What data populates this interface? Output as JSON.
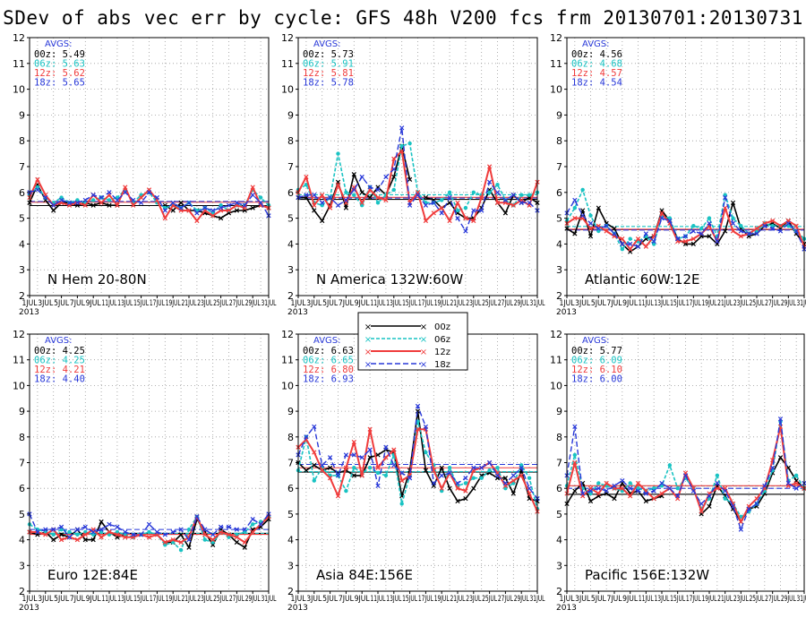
{
  "title": "SDev of abs vec err by cycle: GFS 48h V200 fcs frm 20130701:20130731",
  "colors": {
    "00z": "#000000",
    "06z": "#19c3c3",
    "12z": "#f03c3c",
    "18z": "#2838d8"
  },
  "legend": [
    {
      "name": "00z",
      "symbol": "×"
    },
    {
      "name": "06z",
      "symbol": "×"
    },
    {
      "name": "12z",
      "symbol": "×"
    },
    {
      "name": "18z",
      "symbol": "×"
    }
  ],
  "x_tick_labels": [
    "1JUL",
    "3JUL",
    "5JUL",
    "7JUL",
    "9JUL",
    "11JUL",
    "13JUL",
    "15JUL",
    "17JUL",
    "19JUL",
    "21JUL",
    "23JUL",
    "25JUL",
    "27JUL",
    "29JUL",
    "31JUL"
  ],
  "x_year_label": "2013",
  "chart_data": [
    {
      "type": "line",
      "region": "N Hem 20-80N",
      "avgs_label": "AVGS:",
      "ylim": [
        2,
        12
      ],
      "x": [
        1,
        2,
        3,
        4,
        5,
        6,
        7,
        8,
        9,
        10,
        11,
        12,
        13,
        14,
        15,
        16,
        17,
        18,
        19,
        20,
        21,
        22,
        23,
        24,
        25,
        26,
        27,
        28,
        29,
        30,
        31
      ],
      "series": [
        {
          "name": "00z",
          "avg": 5.49,
          "values": [
            5.6,
            6.3,
            5.7,
            5.3,
            5.6,
            5.6,
            5.5,
            5.6,
            5.5,
            5.6,
            5.5,
            5.5,
            null,
            null,
            null,
            null,
            null,
            5.5,
            5.3,
            5.6,
            5.3,
            5.3,
            5.2,
            5.1,
            5.0,
            5.2,
            5.3,
            5.3,
            5.4,
            5.5,
            5.4
          ]
        },
        {
          "name": "06z",
          "avg": 5.63,
          "values": [
            5.9,
            6.2,
            5.8,
            5.6,
            5.8,
            5.6,
            5.7,
            5.6,
            5.7,
            5.8,
            5.7,
            5.8,
            6.1,
            5.6,
            5.9,
            6.0,
            5.6,
            5.4,
            5.5,
            5.4,
            5.6,
            5.3,
            5.4,
            5.2,
            5.5,
            5.3,
            5.5,
            5.5,
            6.1,
            5.8,
            5.5
          ]
        },
        {
          "name": "12z",
          "avg": 5.62,
          "values": [
            5.8,
            6.5,
            5.9,
            5.5,
            5.6,
            5.5,
            5.6,
            5.5,
            5.9,
            5.6,
            5.9,
            5.5,
            6.2,
            5.5,
            5.8,
            6.1,
            5.7,
            5.0,
            5.5,
            5.3,
            5.3,
            4.9,
            5.3,
            5.1,
            5.3,
            5.3,
            5.5,
            5.4,
            6.2,
            5.5,
            5.4
          ]
        },
        {
          "name": "18z",
          "avg": 5.65,
          "values": [
            6.0,
            6.1,
            5.8,
            5.5,
            5.7,
            5.6,
            5.6,
            5.7,
            5.9,
            5.8,
            6.0,
            5.7,
            6.0,
            5.7,
            5.6,
            6.0,
            5.8,
            5.3,
            5.6,
            5.4,
            5.6,
            5.2,
            5.4,
            5.3,
            5.4,
            5.5,
            5.6,
            5.5,
            5.9,
            5.6,
            5.1
          ]
        }
      ]
    },
    {
      "type": "line",
      "region": "N America 132W:60W",
      "avgs_label": "AVGS:",
      "ylim": [
        2,
        12
      ],
      "x": [
        1,
        2,
        3,
        4,
        5,
        6,
        7,
        8,
        9,
        10,
        11,
        12,
        13,
        14,
        15,
        16,
        17,
        18,
        19,
        20,
        21,
        22,
        23,
        24,
        25,
        26,
        27,
        28,
        29,
        30,
        31
      ],
      "series": [
        {
          "name": "00z",
          "avg": 5.73,
          "values": [
            5.8,
            5.8,
            5.3,
            4.9,
            5.5,
            6.4,
            5.4,
            6.7,
            6.0,
            5.8,
            6.2,
            5.9,
            6.6,
            7.8,
            6.5,
            null,
            5.8,
            5.7,
            5.4,
            5.6,
            5.2,
            5.0,
            5.0,
            5.4,
            6.1,
            5.6,
            5.2,
            5.9,
            5.6,
            5.8,
            5.6
          ]
        },
        {
          "name": "06z",
          "avg": 5.91,
          "values": [
            6.1,
            6.3,
            5.6,
            5.5,
            5.8,
            7.5,
            6.0,
            5.9,
            5.5,
            6.2,
            5.6,
            5.9,
            6.1,
            7.8,
            7.9,
            6.0,
            5.6,
            5.6,
            5.7,
            6.0,
            5.3,
            5.4,
            6.0,
            5.9,
            6.0,
            6.3,
            5.7,
            5.5,
            5.9,
            5.9,
            6.0
          ]
        },
        {
          "name": "12z",
          "avg": 5.81,
          "values": [
            6.0,
            6.6,
            5.5,
            5.9,
            5.4,
            6.3,
            5.6,
            6.2,
            5.6,
            6.1,
            5.8,
            5.7,
            7.3,
            7.6,
            5.6,
            6.0,
            4.9,
            5.2,
            5.4,
            4.9,
            5.6,
            5.0,
            4.9,
            5.8,
            7.0,
            5.6,
            5.6,
            5.5,
            5.7,
            5.5,
            6.4
          ]
        },
        {
          "name": "18z",
          "avg": 5.78,
          "values": [
            5.8,
            5.9,
            5.9,
            5.6,
            5.8,
            5.5,
            5.7,
            6.1,
            6.6,
            6.2,
            6.1,
            6.6,
            6.9,
            8.5,
            5.5,
            5.9,
            5.5,
            5.6,
            5.2,
            5.8,
            5.0,
            4.5,
            5.3,
            5.3,
            6.4,
            6.0,
            5.7,
            5.9,
            5.6,
            5.6,
            5.3
          ]
        }
      ]
    },
    {
      "type": "line",
      "region": "Atlantic 60W:12E",
      "avgs_label": "AVGS:",
      "ylim": [
        2,
        12
      ],
      "x": [
        1,
        2,
        3,
        4,
        5,
        6,
        7,
        8,
        9,
        10,
        11,
        12,
        13,
        14,
        15,
        16,
        17,
        18,
        19,
        20,
        21,
        22,
        23,
        24,
        25,
        26,
        27,
        28,
        29,
        30,
        31
      ],
      "series": [
        {
          "name": "00z",
          "avg": 4.56,
          "values": [
            4.6,
            4.4,
            5.3,
            4.3,
            5.4,
            4.8,
            4.6,
            4.0,
            3.7,
            3.9,
            4.2,
            4.3,
            5.3,
            4.9,
            4.2,
            4.0,
            4.0,
            4.3,
            4.3,
            4.0,
            4.5,
            5.6,
            4.6,
            4.3,
            4.4,
            4.7,
            4.8,
            4.6,
            4.9,
            4.4,
            4.0
          ]
        },
        {
          "name": "06z",
          "avg": 4.68,
          "values": [
            4.9,
            5.4,
            6.1,
            5.1,
            4.5,
            4.7,
            4.4,
            3.8,
            4.2,
            4.1,
            4.3,
            4.0,
            5.1,
            5.0,
            4.2,
            4.3,
            4.7,
            4.6,
            5.0,
            4.3,
            5.9,
            5.0,
            4.7,
            4.4,
            4.5,
            4.8,
            4.7,
            4.7,
            4.7,
            4.5,
            4.2
          ]
        },
        {
          "name": "12z",
          "avg": 4.57,
          "values": [
            4.8,
            5.0,
            5.0,
            4.6,
            4.7,
            4.5,
            4.3,
            4.2,
            3.8,
            4.2,
            3.9,
            4.3,
            5.2,
            4.8,
            4.1,
            4.1,
            4.2,
            4.4,
            4.7,
            4.1,
            5.4,
            4.5,
            4.3,
            4.4,
            4.6,
            4.8,
            4.9,
            4.7,
            4.9,
            4.7,
            3.9
          ]
        },
        {
          "name": "18z",
          "avg": 4.54,
          "values": [
            5.2,
            5.7,
            5.1,
            4.8,
            4.6,
            4.7,
            4.4,
            4.0,
            4.0,
            3.9,
            4.4,
            4.1,
            5.0,
            4.9,
            4.2,
            4.3,
            4.5,
            4.4,
            4.8,
            4.1,
            5.8,
            4.8,
            4.5,
            4.4,
            4.4,
            4.7,
            4.6,
            4.5,
            4.8,
            4.5,
            3.8
          ]
        }
      ]
    },
    {
      "type": "line",
      "region": "Euro 12E:84E",
      "avgs_label": "AVGS:",
      "ylim": [
        2,
        12
      ],
      "x": [
        1,
        2,
        3,
        4,
        5,
        6,
        7,
        8,
        9,
        10,
        11,
        12,
        13,
        14,
        15,
        16,
        17,
        18,
        19,
        20,
        21,
        22,
        23,
        24,
        25,
        26,
        27,
        28,
        29,
        30,
        31
      ],
      "series": [
        {
          "name": "00z",
          "avg": 4.25,
          "values": [
            4.3,
            4.2,
            4.3,
            4.0,
            4.2,
            4.1,
            4.4,
            4.0,
            4.0,
            4.7,
            4.3,
            4.1,
            4.2,
            null,
            null,
            null,
            null,
            3.9,
            3.9,
            4.2,
            3.7,
            4.8,
            4.3,
            3.8,
            4.4,
            4.2,
            3.9,
            3.7,
            4.4,
            4.5,
            4.8
          ]
        },
        {
          "name": "06z",
          "avg": 4.25,
          "values": [
            4.6,
            4.4,
            4.3,
            4.2,
            4.4,
            4.3,
            4.2,
            4.3,
            4.2,
            4.3,
            4.2,
            4.3,
            4.2,
            4.1,
            4.2,
            4.3,
            4.2,
            3.8,
            3.9,
            3.6,
            4.4,
            4.9,
            4.0,
            3.9,
            4.3,
            4.1,
            4.2,
            4.3,
            4.6,
            4.7,
            4.9
          ]
        },
        {
          "name": "12z",
          "avg": 4.21,
          "values": [
            4.3,
            4.3,
            4.2,
            4.4,
            4.0,
            4.1,
            4.0,
            4.2,
            4.4,
            4.1,
            4.3,
            4.2,
            4.1,
            4.1,
            4.2,
            4.1,
            4.2,
            3.9,
            4.0,
            3.9,
            4.1,
            4.9,
            4.2,
            4.0,
            4.3,
            4.2,
            4.1,
            3.9,
            4.3,
            4.6,
            4.9
          ]
        },
        {
          "name": "18z",
          "avg": 4.4,
          "values": [
            5.0,
            4.3,
            4.4,
            4.4,
            4.5,
            4.1,
            4.4,
            4.5,
            4.3,
            4.4,
            4.6,
            4.5,
            4.3,
            4.2,
            4.2,
            4.6,
            4.3,
            4.2,
            4.3,
            4.4,
            4.0,
            4.9,
            4.4,
            4.2,
            4.5,
            4.5,
            4.4,
            4.4,
            4.8,
            4.6,
            5.0
          ]
        }
      ]
    },
    {
      "type": "line",
      "region": "Asia 84E:156E",
      "avgs_label": "AVGS:",
      "ylim": [
        2,
        12
      ],
      "x": [
        1,
        2,
        3,
        4,
        5,
        6,
        7,
        8,
        9,
        10,
        11,
        12,
        13,
        14,
        15,
        16,
        17,
        18,
        19,
        20,
        21,
        22,
        23,
        24,
        25,
        26,
        27,
        28,
        29,
        30,
        31
      ],
      "series": [
        {
          "name": "00z",
          "avg": 6.63,
          "values": [
            7.0,
            6.7,
            6.9,
            6.7,
            6.8,
            6.6,
            6.7,
            6.5,
            6.5,
            7.2,
            7.3,
            7.5,
            7.4,
            5.7,
            6.7,
            9.0,
            6.7,
            6.1,
            6.8,
            6.0,
            5.5,
            5.6,
            6.0,
            6.5,
            6.6,
            6.4,
            6.4,
            5.8,
            6.7,
            5.6,
            5.5
          ]
        },
        {
          "name": "06z",
          "avg": 6.65,
          "values": [
            6.7,
            8.0,
            6.3,
            6.8,
            6.5,
            6.5,
            5.9,
            6.8,
            6.6,
            6.8,
            6.6,
            6.5,
            7.3,
            5.4,
            6.5,
            8.6,
            7.4,
            6.9,
            5.9,
            6.8,
            6.1,
            6.2,
            6.4,
            6.4,
            6.7,
            6.8,
            6.0,
            6.2,
            6.9,
            6.4,
            5.2
          ]
        },
        {
          "name": "12z",
          "avg": 6.8,
          "values": [
            7.6,
            7.9,
            7.4,
            6.7,
            6.4,
            5.7,
            6.8,
            7.8,
            6.5,
            8.3,
            6.8,
            7.2,
            7.5,
            6.3,
            6.5,
            8.3,
            8.3,
            6.7,
            6.0,
            6.6,
            6.0,
            5.9,
            6.7,
            6.8,
            7.0,
            6.6,
            6.1,
            6.3,
            6.5,
            5.8,
            5.1
          ]
        },
        {
          "name": "18z",
          "avg": 6.93,
          "values": [
            7.3,
            8.0,
            8.4,
            6.9,
            7.2,
            6.5,
            7.3,
            7.3,
            7.2,
            7.5,
            6.1,
            7.6,
            6.9,
            6.6,
            6.4,
            9.2,
            8.4,
            6.2,
            6.5,
            6.6,
            6.2,
            6.4,
            6.8,
            6.8,
            7.0,
            6.5,
            6.2,
            6.5,
            6.8,
            6.0,
            5.6
          ]
        }
      ]
    },
    {
      "type": "line",
      "region": "Pacific 156E:132W",
      "avgs_label": "AVGS:",
      "ylim": [
        2,
        12
      ],
      "x": [
        1,
        2,
        3,
        4,
        5,
        6,
        7,
        8,
        9,
        10,
        11,
        12,
        13,
        14,
        15,
        16,
        17,
        18,
        19,
        20,
        21,
        22,
        23,
        24,
        25,
        26,
        27,
        28,
        29,
        30,
        31
      ],
      "series": [
        {
          "name": "00z",
          "avg": 5.77,
          "values": [
            5.4,
            5.9,
            6.2,
            5.5,
            5.7,
            5.8,
            5.6,
            6.2,
            5.8,
            5.9,
            5.5,
            5.6,
            5.7,
            null,
            null,
            null,
            null,
            5.0,
            5.3,
            6.1,
            5.7,
            5.2,
            4.7,
            5.2,
            5.3,
            5.8,
            6.6,
            7.2,
            6.8,
            6.3,
            6.0
          ]
        },
        {
          "name": "06z",
          "avg": 6.09,
          "values": [
            6.1,
            7.3,
            6.0,
            5.8,
            6.2,
            6.1,
            6.0,
            5.9,
            6.2,
            6.0,
            5.9,
            6.0,
            6.1,
            6.9,
            6.0,
            6.4,
            6.0,
            5.2,
            5.6,
            6.5,
            5.6,
            5.4,
            4.9,
            5.1,
            5.4,
            5.9,
            6.7,
            8.6,
            6.3,
            6.5,
            6.0
          ]
        },
        {
          "name": "12z",
          "avg": 6.1,
          "values": [
            5.8,
            7.0,
            5.7,
            6.0,
            5.8,
            6.2,
            6.0,
            6.0,
            5.7,
            6.2,
            5.9,
            5.6,
            5.8,
            6.0,
            5.6,
            6.6,
            6.0,
            5.1,
            5.8,
            6.0,
            6.0,
            5.4,
            4.7,
            5.3,
            5.6,
            6.0,
            7.1,
            8.4,
            6.1,
            6.2,
            6.0
          ]
        },
        {
          "name": "18z",
          "avg": 6.0,
          "values": [
            6.5,
            8.4,
            5.8,
            5.9,
            6.0,
            5.9,
            6.1,
            6.3,
            6.0,
            5.9,
            5.8,
            5.9,
            6.2,
            6.0,
            5.7,
            6.5,
            5.9,
            5.4,
            5.7,
            6.2,
            5.9,
            5.3,
            4.4,
            5.2,
            5.4,
            6.1,
            6.8,
            8.7,
            6.2,
            6.0,
            6.2
          ]
        }
      ]
    }
  ]
}
